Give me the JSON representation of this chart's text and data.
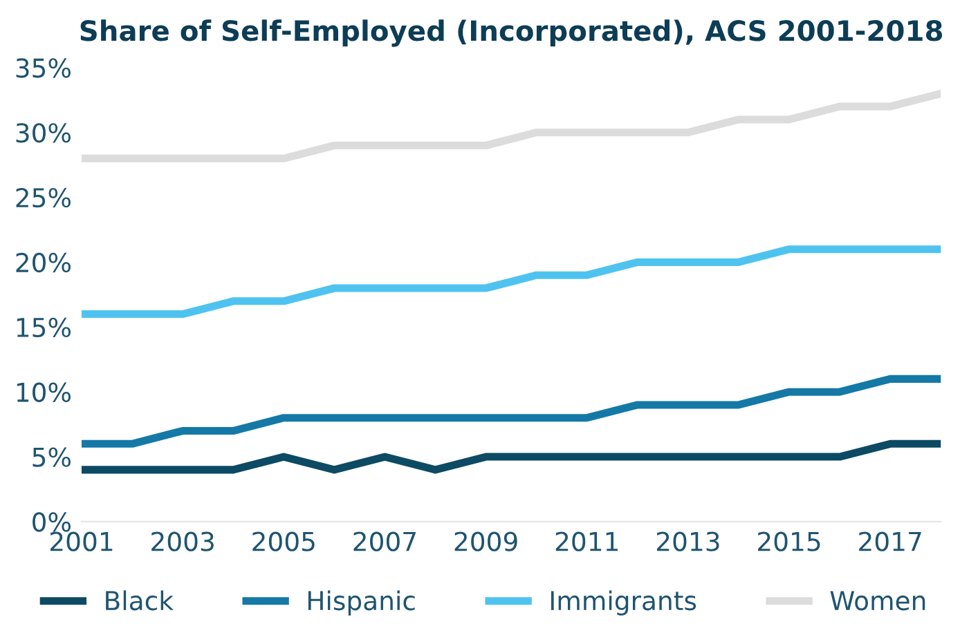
{
  "chart_data": {
    "type": "line",
    "title": "Share of Self-Employed (Incorporated), ACS 2001-2018",
    "x": [
      2001,
      2002,
      2003,
      2004,
      2005,
      2006,
      2007,
      2008,
      2009,
      2010,
      2011,
      2012,
      2013,
      2014,
      2015,
      2016,
      2017,
      2018
    ],
    "series": [
      {
        "name": "Black",
        "color": "#0d4a63",
        "values": [
          4,
          4,
          4,
          4,
          5,
          4,
          5,
          4,
          5,
          5,
          5,
          5,
          5,
          5,
          5,
          5,
          6,
          6
        ]
      },
      {
        "name": "Hispanic",
        "color": "#1479a6",
        "values": [
          6,
          6,
          7,
          7,
          8,
          8,
          8,
          8,
          8,
          8,
          8,
          9,
          9,
          9,
          10,
          10,
          11,
          11
        ]
      },
      {
        "name": "Immigrants",
        "color": "#4fc3ef",
        "values": [
          16,
          16,
          16,
          17,
          17,
          18,
          18,
          18,
          18,
          19,
          19,
          20,
          20,
          20,
          21,
          21,
          21,
          21
        ]
      },
      {
        "name": "Women",
        "color": "#dcdcdc",
        "values": [
          28,
          28,
          28,
          28,
          28,
          29,
          29,
          29,
          29,
          30,
          30,
          30,
          30,
          31,
          31,
          32,
          32,
          33
        ]
      }
    ],
    "xlim": [
      2001,
      2018
    ],
    "xticks": [
      2001,
      2003,
      2005,
      2007,
      2009,
      2011,
      2013,
      2015,
      2017
    ],
    "ylim": [
      0,
      35
    ],
    "yticks": [
      {
        "value": 0,
        "label": "0%"
      },
      {
        "value": 5,
        "label": "5%"
      },
      {
        "value": 10,
        "label": "10%"
      },
      {
        "value": 15,
        "label": "15%"
      },
      {
        "value": 20,
        "label": "20%"
      },
      {
        "value": 25,
        "label": "25%"
      },
      {
        "value": 30,
        "label": "30%"
      },
      {
        "value": 35,
        "label": "35%"
      }
    ],
    "grid": false,
    "legend": "bottom",
    "marker": "none",
    "line_style": "solid"
  }
}
